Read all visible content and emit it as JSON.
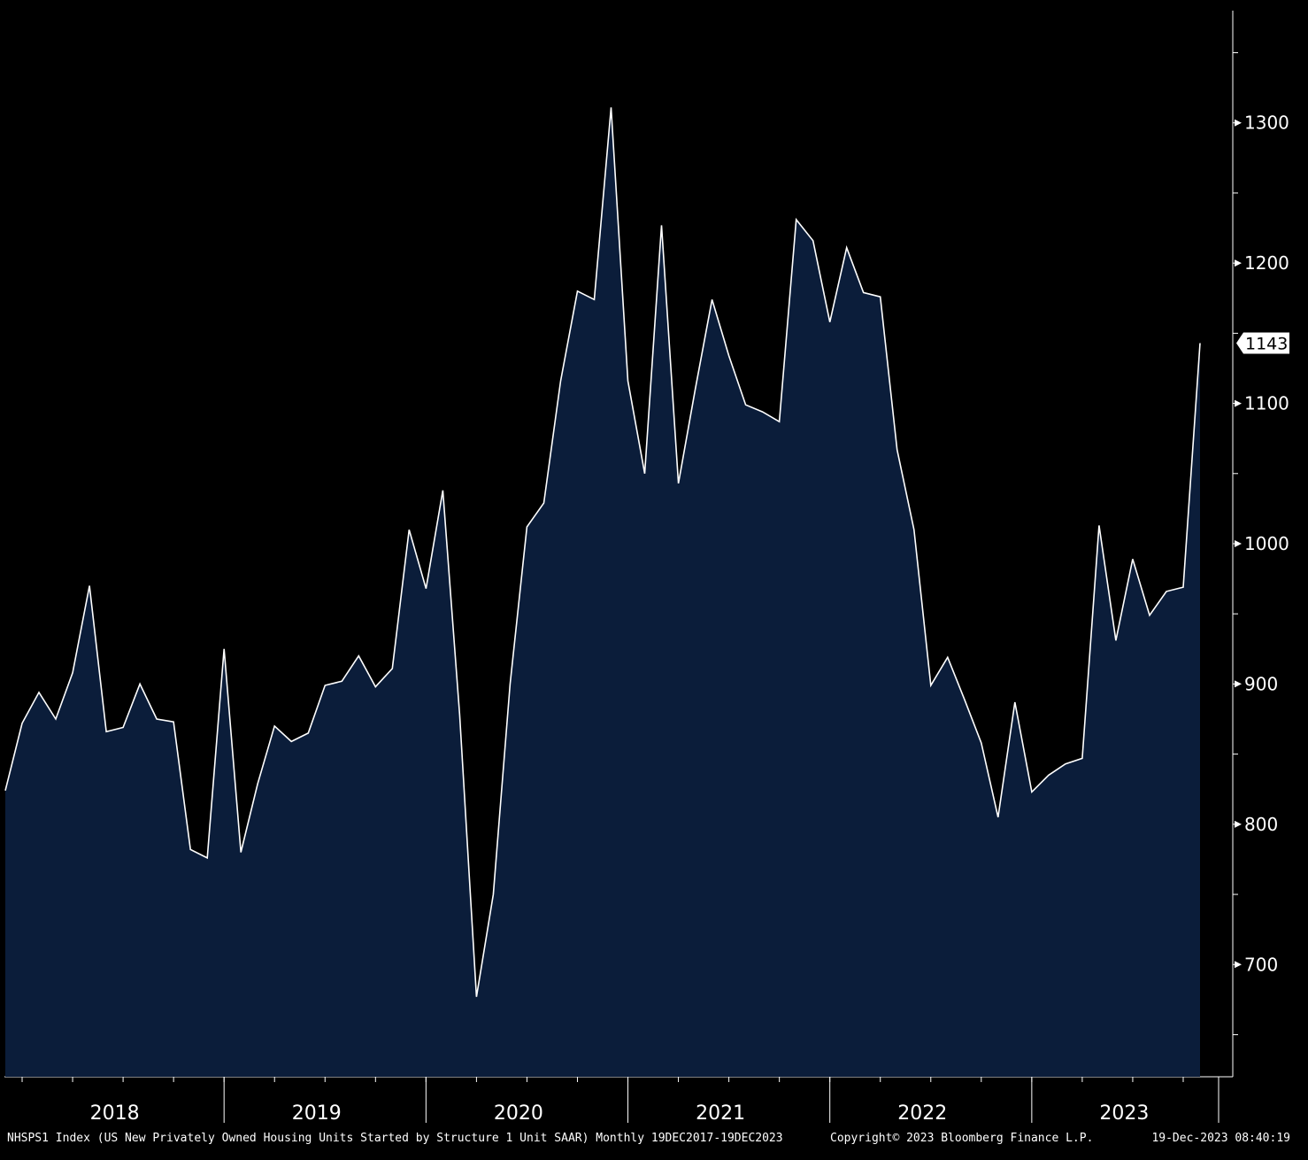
{
  "colors": {
    "background": "#000000",
    "area_fill": "#0b1d3a",
    "line": "#ffffff",
    "axis": "#ffffff",
    "text": "#ffffff",
    "last_value_box": "#ffffff",
    "last_value_text": "#000000"
  },
  "footer": {
    "description": "NHSPS1 Index (US New Privately Owned Housing Units Started by Structure 1 Unit SAAR)  Monthly 19DEC2017-19DEC2023",
    "copyright": "Copyright© 2023 Bloomberg Finance L.P.",
    "timestamp": "19-Dec-2023 08:40:19"
  },
  "chart_data": {
    "type": "area",
    "title": "",
    "xlabel": "",
    "ylabel": "",
    "y_axis_side": "right",
    "ylim": [
      620,
      1380
    ],
    "y_ticks": [
      700,
      800,
      900,
      1000,
      1100,
      1200,
      1300
    ],
    "x_year_labels": [
      "2018",
      "2019",
      "2020",
      "2021",
      "2022",
      "2023"
    ],
    "last_value_label": "1143",
    "grid": false,
    "legend": "none",
    "series": [
      {
        "x": [
          "2017-12",
          "2018-01",
          "2018-02",
          "2018-03",
          "2018-04",
          "2018-05",
          "2018-06",
          "2018-07",
          "2018-08",
          "2018-09",
          "2018-10",
          "2018-11",
          "2018-12",
          "2019-01",
          "2019-02",
          "2019-03",
          "2019-04",
          "2019-05",
          "2019-06",
          "2019-07",
          "2019-08",
          "2019-09",
          "2019-10",
          "2019-11",
          "2019-12",
          "2020-01",
          "2020-02",
          "2020-03",
          "2020-04",
          "2020-05",
          "2020-06",
          "2020-07",
          "2020-08",
          "2020-09",
          "2020-10",
          "2020-11",
          "2020-12",
          "2021-01",
          "2021-02",
          "2021-03",
          "2021-04",
          "2021-05",
          "2021-06",
          "2021-07",
          "2021-08",
          "2021-09",
          "2021-10",
          "2021-11",
          "2021-12",
          "2022-01",
          "2022-02",
          "2022-03",
          "2022-04",
          "2022-05",
          "2022-06",
          "2022-07",
          "2022-08",
          "2022-09",
          "2022-10",
          "2022-11",
          "2022-12",
          "2023-01",
          "2023-02",
          "2023-03",
          "2023-04",
          "2023-05",
          "2023-06",
          "2023-07",
          "2023-08",
          "2023-09",
          "2023-10",
          "2023-11"
        ],
        "values": [
          824,
          872,
          894,
          875,
          908,
          970,
          866,
          869,
          900,
          875,
          873,
          782,
          776,
          925,
          780,
          829,
          870,
          859,
          865,
          899,
          902,
          920,
          898,
          911,
          1010,
          968,
          1038,
          878,
          677,
          750,
          900,
          1012,
          1029,
          1116,
          1180,
          1174,
          1311,
          1116,
          1050,
          1227,
          1043,
          1110,
          1174,
          1134,
          1099,
          1094,
          1087,
          1231,
          1216,
          1158,
          1211,
          1179,
          1176,
          1067,
          1010,
          899,
          919,
          889,
          858,
          805,
          887,
          823,
          835,
          843,
          847,
          1013,
          931,
          989,
          949,
          966,
          969,
          1143
        ]
      }
    ]
  }
}
